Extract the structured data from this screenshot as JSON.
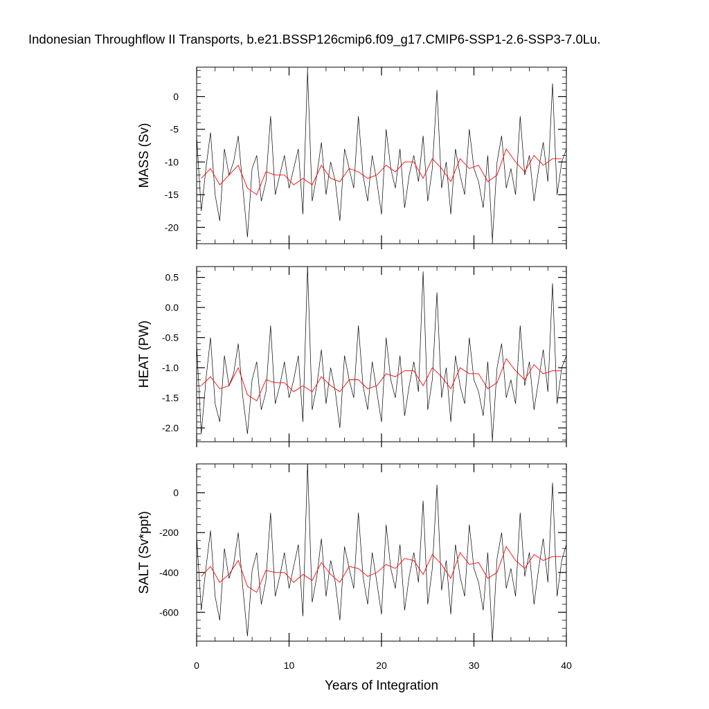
{
  "title": "Indonesian Throughflow II Transports, b.e21.BSSP126cmip6.f09_g17.CMIP6-SSP1-2.6-SSP3-7.0Lu.",
  "chart_data": [
    {
      "type": "line",
      "ylabel": "MASS (Sv)",
      "xlabel": "",
      "xlim": [
        0,
        40
      ],
      "ylim": [
        -22.5,
        4.5
      ],
      "yticks": [
        0,
        -5,
        -10,
        -15,
        -20
      ],
      "ytick_labels": [
        "0",
        "-5",
        "-10",
        "-15",
        "-20"
      ],
      "xticks": [
        0,
        10,
        20,
        30,
        40
      ],
      "xtick_labels": [],
      "series": [
        {
          "key": "monthly",
          "color": "#000000",
          "x": [
            0,
            0.5,
            1,
            1.5,
            2,
            2.5,
            3,
            3.5,
            4,
            4.5,
            5,
            5.5,
            6,
            6.5,
            7,
            7.5,
            8,
            8.5,
            9,
            9.5,
            10,
            10.5,
            11,
            11.5,
            12,
            12.5,
            13,
            13.5,
            14,
            14.5,
            15,
            15.5,
            16,
            16.5,
            17,
            17.5,
            18,
            18.5,
            19,
            19.5,
            20,
            20.5,
            21,
            21.5,
            22,
            22.5,
            23,
            23.5,
            24,
            24.5,
            25,
            25.5,
            26,
            26.5,
            27,
            27.5,
            28,
            28.5,
            29,
            29.5,
            30,
            30.5,
            31,
            31.5,
            32,
            32.5,
            33,
            33.5,
            34,
            34.5,
            35,
            35.5,
            36,
            36.5,
            37,
            37.5,
            38,
            38.5,
            39,
            39.5,
            40
          ],
          "y": [
            -6,
            -17.5,
            -11,
            -5.5,
            -15,
            -19,
            -8,
            -12,
            -10,
            -6,
            -14,
            -21.5,
            -11,
            -9,
            -16,
            -13,
            -3,
            -15,
            -12,
            -9,
            -14,
            -11,
            -8,
            -18,
            4,
            -16,
            -12,
            -7,
            -15,
            -10,
            -13,
            -19,
            -8,
            -11,
            -14,
            -3,
            -12,
            -16,
            -9,
            -13,
            -18,
            -5,
            -11,
            -14,
            -8,
            -17,
            -12,
            -9,
            -13,
            -6,
            -16,
            -11,
            1,
            -14,
            -10,
            -18,
            -8,
            -12,
            -15,
            -5,
            -11,
            -13,
            -17,
            -9,
            -22,
            -10,
            -6,
            -14,
            -11,
            -15,
            -3,
            -12,
            -9,
            -16,
            -11,
            -7,
            -13,
            2,
            -15,
            -10,
            -8
          ]
        },
        {
          "key": "annual",
          "color": "#ff0000",
          "x": [
            0.5,
            1.5,
            2.5,
            3.5,
            4.5,
            5.5,
            6.5,
            7.5,
            8.5,
            9.5,
            10.5,
            11.5,
            12.5,
            13.5,
            14.5,
            15.5,
            16.5,
            17.5,
            18.5,
            19.5,
            20.5,
            21.5,
            22.5,
            23.5,
            24.5,
            25.5,
            26.5,
            27.5,
            28.5,
            29.5,
            30.5,
            31.5,
            32.5,
            33.5,
            34.5,
            35.5,
            36.5,
            37.5,
            38.5,
            39.5
          ],
          "y": [
            -12.5,
            -11,
            -13.5,
            -12,
            -10.5,
            -14,
            -15,
            -11.5,
            -12,
            -12,
            -13.5,
            -12.5,
            -13.5,
            -10.5,
            -12.5,
            -13,
            -11,
            -11.5,
            -12.5,
            -12,
            -10.5,
            -11.5,
            -10,
            -10,
            -12.5,
            -9.5,
            -11,
            -13,
            -9.5,
            -11,
            -10.5,
            -13,
            -12,
            -8,
            -10,
            -11.5,
            -9,
            -10.5,
            -9.5,
            -9.5
          ]
        }
      ]
    },
    {
      "type": "line",
      "ylabel": "HEAT (PW)",
      "xlabel": "",
      "xlim": [
        0,
        40
      ],
      "ylim": [
        -2.23,
        0.68
      ],
      "yticks": [
        0.5,
        0.0,
        -0.5,
        -1.0,
        -1.5,
        -2.0
      ],
      "ytick_labels": [
        "0.5",
        "0.0",
        "-0.5",
        "-1.0",
        "-1.5",
        "-2.0"
      ],
      "xticks": [
        0,
        10,
        20,
        30,
        40
      ],
      "xtick_labels": [],
      "series": [
        {
          "key": "monthly",
          "color": "#000000",
          "x": [
            0,
            0.5,
            1,
            1.5,
            2,
            2.5,
            3,
            3.5,
            4,
            4.5,
            5,
            5.5,
            6,
            6.5,
            7,
            7.5,
            8,
            8.5,
            9,
            9.5,
            10,
            10.5,
            11,
            11.5,
            12,
            12.5,
            13,
            13.5,
            14,
            14.5,
            15,
            15.5,
            16,
            16.5,
            17,
            17.5,
            18,
            18.5,
            19,
            19.5,
            20,
            20.5,
            21,
            21.5,
            22,
            22.5,
            23,
            23.5,
            24,
            24.5,
            25,
            25.5,
            26,
            26.5,
            27,
            27.5,
            28,
            28.5,
            29,
            29.5,
            30,
            30.5,
            31,
            31.5,
            32,
            32.5,
            33,
            33.5,
            34,
            34.5,
            35,
            35.5,
            36,
            36.5,
            37,
            37.5,
            38,
            38.5,
            39,
            39.5,
            40
          ],
          "y": [
            -0.6,
            -2.1,
            -1.2,
            -0.5,
            -1.6,
            -1.9,
            -0.8,
            -1.3,
            -1.1,
            -0.6,
            -1.5,
            -2.1,
            -1.2,
            -0.9,
            -1.7,
            -1.4,
            -0.3,
            -1.6,
            -1.3,
            -0.9,
            -1.5,
            -1.2,
            -0.8,
            -1.9,
            0.68,
            -1.7,
            -1.3,
            -0.7,
            -1.6,
            -1.0,
            -1.4,
            -2.0,
            -0.8,
            -1.2,
            -1.5,
            -0.3,
            -1.3,
            -1.7,
            -0.9,
            -1.4,
            -1.9,
            -0.5,
            -1.2,
            -1.5,
            -0.8,
            -1.8,
            -1.3,
            -0.9,
            -1.4,
            0.6,
            -1.7,
            -1.2,
            0.25,
            -1.5,
            -1.0,
            -1.9,
            -0.8,
            -1.3,
            -1.6,
            -0.5,
            -1.2,
            -1.4,
            -1.8,
            -0.9,
            -2.2,
            -1.0,
            -0.6,
            -1.5,
            -1.2,
            -1.6,
            -0.3,
            -1.3,
            -0.9,
            -1.7,
            -1.2,
            -0.7,
            -1.4,
            0.4,
            -1.6,
            -1.0,
            -0.8
          ]
        },
        {
          "key": "annual",
          "color": "#ff0000",
          "x": [
            0.5,
            1.5,
            2.5,
            3.5,
            4.5,
            5.5,
            6.5,
            7.5,
            8.5,
            9.5,
            10.5,
            11.5,
            12.5,
            13.5,
            14.5,
            15.5,
            16.5,
            17.5,
            18.5,
            19.5,
            20.5,
            21.5,
            22.5,
            23.5,
            24.5,
            25.5,
            26.5,
            27.5,
            28.5,
            29.5,
            30.5,
            31.5,
            32.5,
            33.5,
            34.5,
            35.5,
            36.5,
            37.5,
            38.5,
            39.5
          ],
          "y": [
            -1.3,
            -1.15,
            -1.35,
            -1.3,
            -1.0,
            -1.45,
            -1.55,
            -1.2,
            -1.25,
            -1.25,
            -1.4,
            -1.3,
            -1.4,
            -1.15,
            -1.3,
            -1.4,
            -1.2,
            -1.2,
            -1.35,
            -1.3,
            -1.1,
            -1.15,
            -1.05,
            -1.05,
            -1.3,
            -1.0,
            -1.15,
            -1.35,
            -1.0,
            -1.1,
            -1.1,
            -1.35,
            -1.25,
            -0.85,
            -1.05,
            -1.2,
            -0.95,
            -1.1,
            -1.05,
            -1.05
          ]
        }
      ]
    },
    {
      "type": "line",
      "ylabel": "SALT (Sv*ppt)",
      "xlabel": "Years of Integration",
      "xlim": [
        0,
        40
      ],
      "ylim": [
        -745,
        145
      ],
      "yticks": [
        0,
        -200,
        -400,
        -600
      ],
      "ytick_labels": [
        "0",
        "-200",
        "-400",
        "-600"
      ],
      "xticks": [
        0,
        10,
        20,
        30,
        40
      ],
      "xtick_labels": [
        "0",
        "10",
        "20",
        "30",
        "40"
      ],
      "series": [
        {
          "key": "monthly",
          "color": "#000000",
          "x": [
            0,
            0.5,
            1,
            1.5,
            2,
            2.5,
            3,
            3.5,
            4,
            4.5,
            5,
            5.5,
            6,
            6.5,
            7,
            7.5,
            8,
            8.5,
            9,
            9.5,
            10,
            10.5,
            11,
            11.5,
            12,
            12.5,
            13,
            13.5,
            14,
            14.5,
            15,
            15.5,
            16,
            16.5,
            17,
            17.5,
            18,
            18.5,
            19,
            19.5,
            20,
            20.5,
            21,
            21.5,
            22,
            22.5,
            23,
            23.5,
            24,
            24.5,
            25,
            25.5,
            26,
            26.5,
            27,
            27.5,
            28,
            28.5,
            29,
            29.5,
            30,
            30.5,
            31,
            31.5,
            32,
            32.5,
            33,
            33.5,
            34,
            34.5,
            35,
            35.5,
            36,
            36.5,
            37,
            37.5,
            38,
            38.5,
            39,
            39.5,
            40
          ],
          "y": [
            -220,
            -590,
            -380,
            -190,
            -520,
            -640,
            -280,
            -430,
            -360,
            -200,
            -480,
            -720,
            -390,
            -300,
            -560,
            -440,
            -100,
            -520,
            -420,
            -300,
            -480,
            -370,
            -260,
            -620,
            145,
            -550,
            -420,
            -230,
            -520,
            -340,
            -450,
            -640,
            -270,
            -380,
            -480,
            -100,
            -420,
            -560,
            -300,
            -450,
            -610,
            -160,
            -380,
            -480,
            -260,
            -590,
            -420,
            -300,
            -450,
            -40,
            -560,
            -380,
            40,
            -490,
            -340,
            -610,
            -260,
            -420,
            -520,
            -160,
            -380,
            -450,
            -590,
            -300,
            -745,
            -330,
            -200,
            -480,
            -380,
            -520,
            -100,
            -420,
            -300,
            -560,
            -380,
            -230,
            -450,
            50,
            -520,
            -340,
            -260
          ]
        },
        {
          "key": "annual",
          "color": "#ff0000",
          "x": [
            0.5,
            1.5,
            2.5,
            3.5,
            4.5,
            5.5,
            6.5,
            7.5,
            8.5,
            9.5,
            10.5,
            11.5,
            12.5,
            13.5,
            14.5,
            15.5,
            16.5,
            17.5,
            18.5,
            19.5,
            20.5,
            21.5,
            22.5,
            23.5,
            24.5,
            25.5,
            26.5,
            27.5,
            28.5,
            29.5,
            30.5,
            31.5,
            32.5,
            33.5,
            34.5,
            35.5,
            36.5,
            37.5,
            38.5,
            39.5
          ],
          "y": [
            -420,
            -370,
            -450,
            -410,
            -340,
            -470,
            -500,
            -390,
            -400,
            -400,
            -450,
            -410,
            -440,
            -350,
            -410,
            -450,
            -370,
            -380,
            -420,
            -400,
            -360,
            -380,
            -330,
            -340,
            -410,
            -310,
            -360,
            -430,
            -300,
            -360,
            -350,
            -430,
            -400,
            -270,
            -340,
            -380,
            -310,
            -340,
            -320,
            -320
          ]
        }
      ]
    }
  ]
}
